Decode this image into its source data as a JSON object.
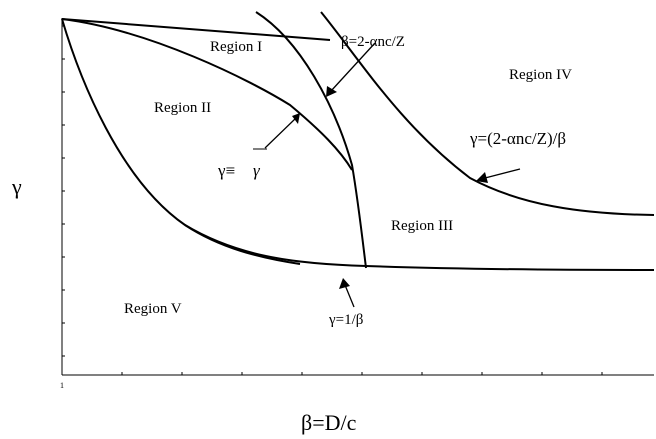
{
  "axes": {
    "x_title": "β=D/c",
    "y_title": "γ",
    "x_origin_tick": "1"
  },
  "regions": {
    "r1": "Region I",
    "r2": "Region II",
    "r3": "Region III",
    "r4": "Region IV",
    "r5": "Region V"
  },
  "curves": {
    "beta_boundary": "β=2-αnc/Z",
    "gamma_upper": "γ=(2-αnc/Z)/β",
    "gamma_bar_lhs": "γ≡ ",
    "gamma_bar_sym": "γ",
    "gamma_lower": "γ=1/β"
  }
}
